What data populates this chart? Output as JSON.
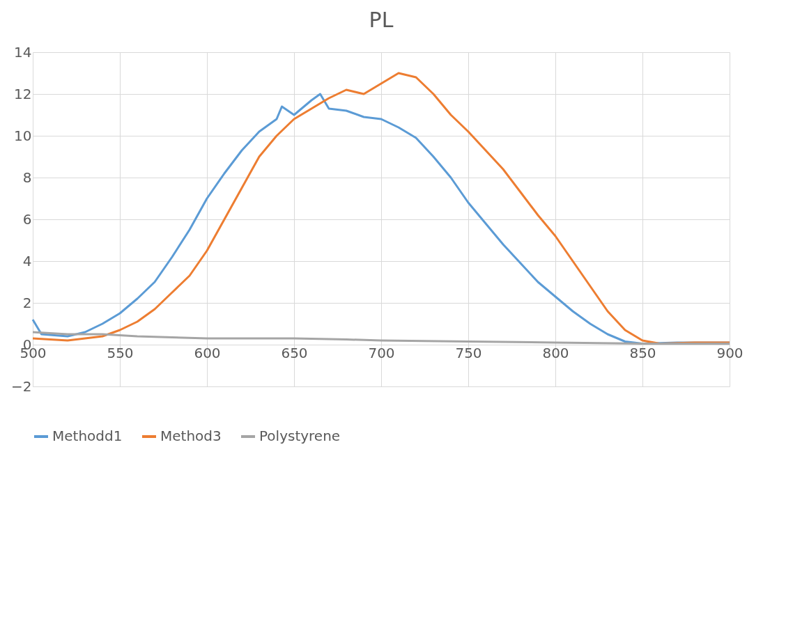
{
  "chart_data": {
    "type": "line",
    "title": "PL",
    "xlim": [
      500,
      900
    ],
    "xticks": [
      500,
      550,
      600,
      650,
      700,
      750,
      800,
      850,
      900
    ],
    "ylim": [
      -2,
      14
    ],
    "yticks": [
      -2,
      0,
      2,
      4,
      6,
      8,
      10,
      12,
      14
    ],
    "grid": true,
    "legend": "bottom",
    "series": [
      {
        "name": "Methodd1",
        "color": "#5b9bd5",
        "x": [
          500,
          505,
          520,
          530,
          540,
          550,
          560,
          570,
          580,
          590,
          600,
          610,
          620,
          630,
          640,
          643,
          650,
          660,
          665,
          670,
          680,
          690,
          700,
          710,
          720,
          730,
          740,
          750,
          760,
          770,
          780,
          790,
          800,
          810,
          820,
          830,
          840,
          850,
          870,
          900
        ],
        "values": [
          1.2,
          0.5,
          0.4,
          0.6,
          1.0,
          1.5,
          2.2,
          3.0,
          4.2,
          5.5,
          7.0,
          8.2,
          9.3,
          10.2,
          10.8,
          11.4,
          11.0,
          11.7,
          12.0,
          11.3,
          11.2,
          10.9,
          10.8,
          10.4,
          9.9,
          9.0,
          8.0,
          6.8,
          5.8,
          4.8,
          3.9,
          3.0,
          2.3,
          1.6,
          1.0,
          0.5,
          0.15,
          0.05,
          0.1,
          0.1
        ]
      },
      {
        "name": "Method3",
        "color": "#ed7d31",
        "x": [
          500,
          520,
          540,
          550,
          560,
          570,
          580,
          590,
          600,
          610,
          620,
          630,
          640,
          650,
          660,
          670,
          680,
          690,
          700,
          710,
          720,
          730,
          740,
          750,
          760,
          770,
          780,
          790,
          800,
          810,
          820,
          830,
          840,
          850,
          860,
          880,
          900
        ],
        "values": [
          0.3,
          0.2,
          0.4,
          0.7,
          1.1,
          1.7,
          2.5,
          3.3,
          4.5,
          6.0,
          7.5,
          9.0,
          10.0,
          10.8,
          11.3,
          11.8,
          12.2,
          12.0,
          12.5,
          13.0,
          12.8,
          12.0,
          11.0,
          10.2,
          9.3,
          8.4,
          7.3,
          6.2,
          5.2,
          4.0,
          2.8,
          1.6,
          0.7,
          0.2,
          0.05,
          0.1,
          0.1
        ]
      },
      {
        "name": "Polystyrene",
        "color": "#a5a5a5",
        "x": [
          500,
          520,
          540,
          560,
          580,
          600,
          620,
          650,
          680,
          700,
          750,
          800,
          850,
          900
        ],
        "values": [
          0.6,
          0.5,
          0.5,
          0.4,
          0.35,
          0.3,
          0.3,
          0.3,
          0.25,
          0.2,
          0.15,
          0.1,
          0.05,
          0.05
        ]
      }
    ]
  }
}
